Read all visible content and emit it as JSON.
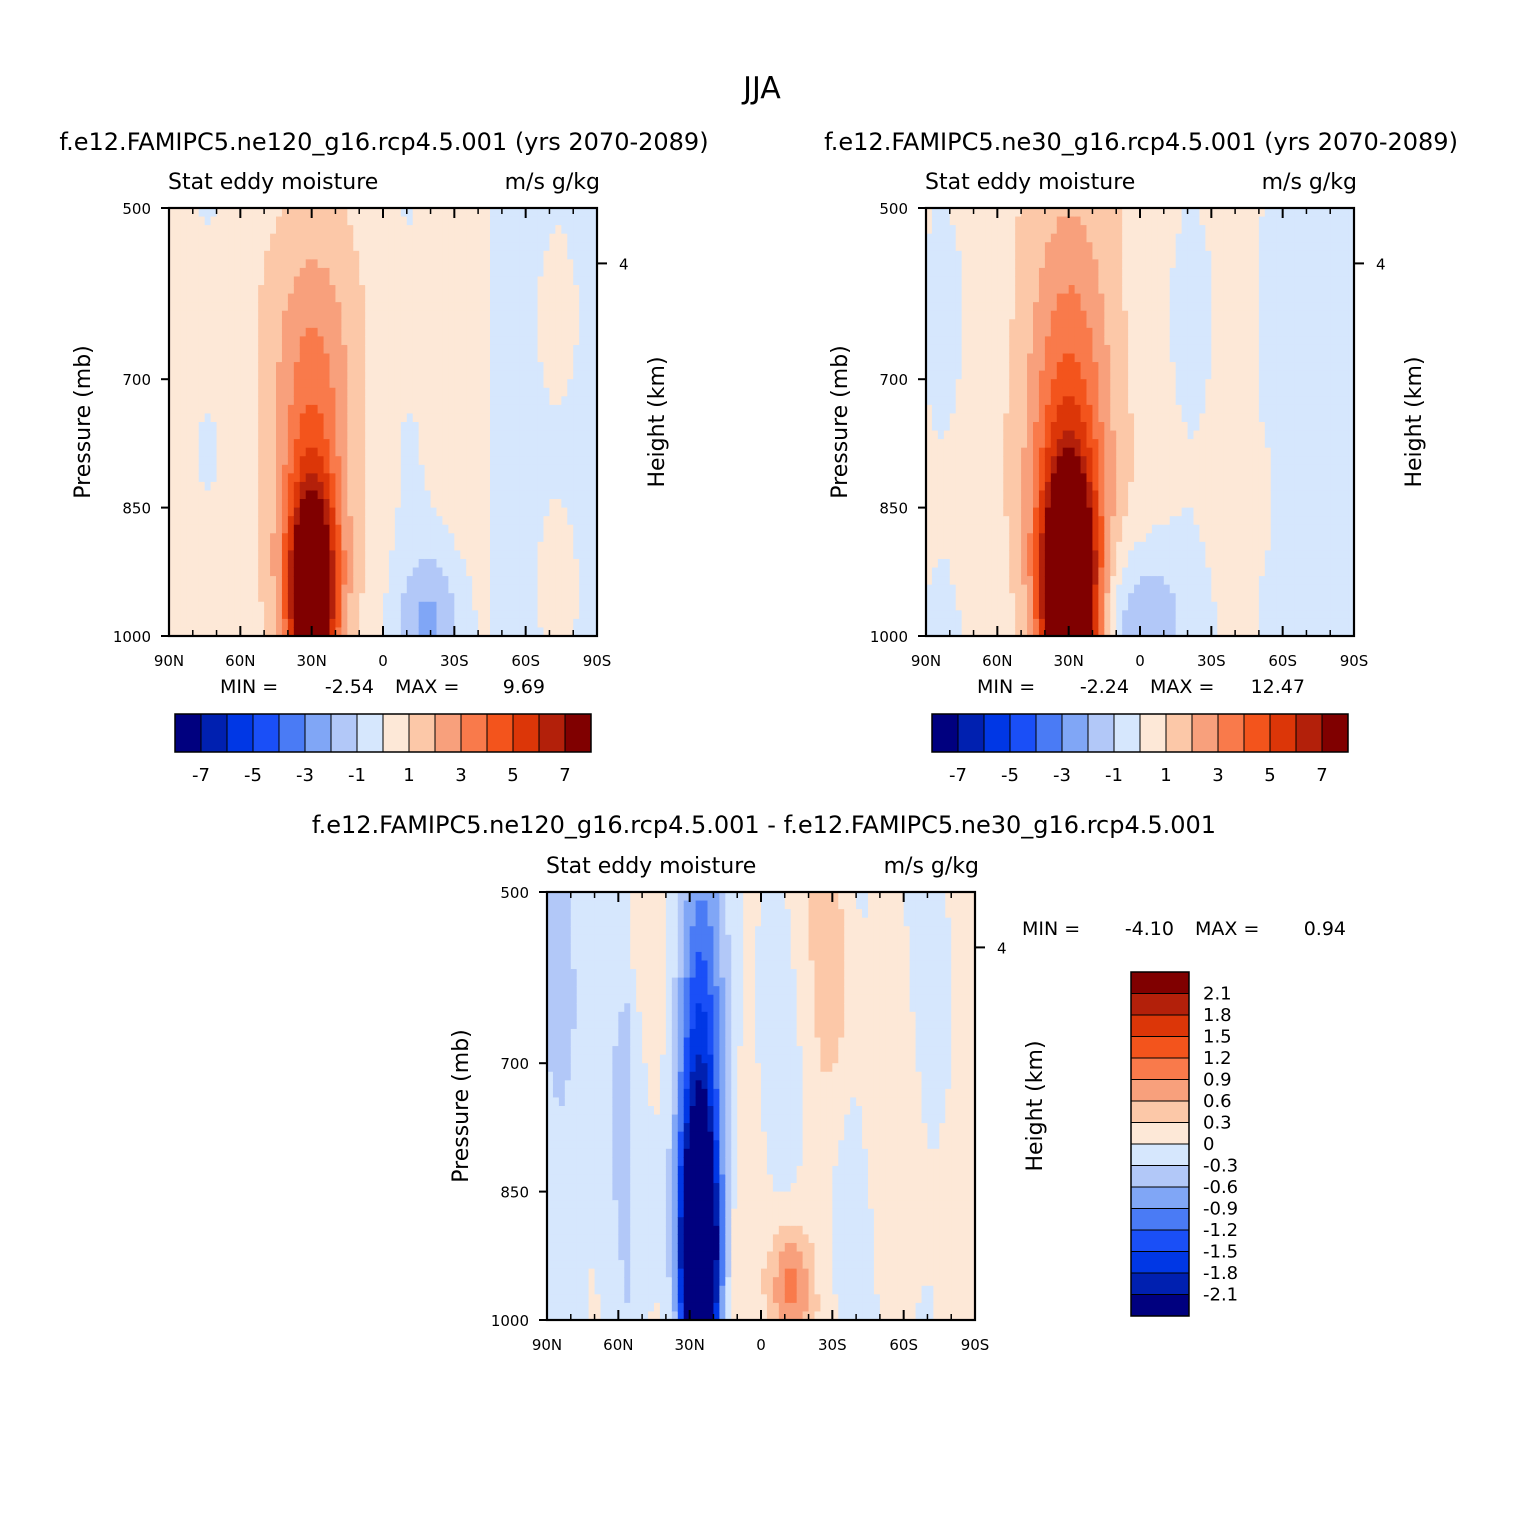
{
  "figure": {
    "title": "JJA"
  },
  "colors": {
    "lv": [
      "#00007f",
      "#0020b0",
      "#0037e5",
      "#1a4ff7",
      "#4a7bf5",
      "#80a6f6",
      "#b2c8f8",
      "#d6e7fd",
      "#fde8d7",
      "#fcc8a8",
      "#f8a07c",
      "#f97a4b",
      "#f3541c",
      "#dc3608",
      "#b3200a",
      "#800000"
    ],
    "bg_neg": "#d6e7fd",
    "bg_pos": "#fde8d7"
  },
  "chart_data": [
    {
      "id": "p1",
      "type": "heatmap",
      "title": "f.e12.FAMIPC5.ne120_g16.rcp4.5.001 (yrs 2070-2089)",
      "left_label": "Stat eddy moisture",
      "right_label": "m/s g/kg",
      "xlabel": "",
      "ylabel": "Pressure (mb)",
      "y2label": "Height (km)",
      "x_ticks": [
        "90N",
        "60N",
        "30N",
        "0",
        "30S",
        "60S",
        "90S"
      ],
      "x_range": [
        90,
        -90
      ],
      "y_ticks": [
        500,
        700,
        850,
        1000
      ],
      "y_range": [
        500,
        1000
      ],
      "y2_ticks": [
        4
      ],
      "min_label": "MIN =",
      "min_value": "-2.54",
      "max_label": "MAX =",
      "max_value": "9.69",
      "colorbar_labels": [
        "-7",
        "-5",
        "-3",
        "-1",
        "1",
        "3",
        "5",
        "7"
      ],
      "contour_levels": [
        -7,
        -6,
        -5,
        -4,
        -3,
        -2,
        -1,
        0,
        1,
        2,
        3,
        4,
        5,
        6,
        7
      ],
      "peak": {
        "lat": 30,
        "pressure": 950,
        "value": 9.69
      },
      "minimum": {
        "lat": -20,
        "pressure": 980,
        "value": -2.54
      }
    },
    {
      "id": "p2",
      "type": "heatmap",
      "title": "f.e12.FAMIPC5.ne30_g16.rcp4.5.001 (yrs 2070-2089)",
      "left_label": "Stat eddy moisture",
      "right_label": "m/s g/kg",
      "xlabel": "",
      "ylabel": "Pressure (mb)",
      "y2label": "Height (km)",
      "x_ticks": [
        "90N",
        "60N",
        "30N",
        "0",
        "30S",
        "60S",
        "90S"
      ],
      "x_range": [
        90,
        -90
      ],
      "y_ticks": [
        500,
        700,
        850,
        1000
      ],
      "y_range": [
        500,
        1000
      ],
      "y2_ticks": [
        4
      ],
      "min_label": "MIN =",
      "min_value": "-2.24",
      "max_label": "MAX =",
      "max_value": "12.47",
      "colorbar_labels": [
        "-7",
        "-5",
        "-3",
        "-1",
        "1",
        "3",
        "5",
        "7"
      ],
      "contour_levels": [
        -7,
        -6,
        -5,
        -4,
        -3,
        -2,
        -1,
        0,
        1,
        2,
        3,
        4,
        5,
        6,
        7
      ],
      "peak": {
        "lat": 30,
        "pressure": 950,
        "value": 12.47
      },
      "minimum": {
        "lat": 0,
        "pressure": 980,
        "value": -2.24
      }
    },
    {
      "id": "p3",
      "type": "heatmap",
      "title": "f.e12.FAMIPC5.ne120_g16.rcp4.5.001 - f.e12.FAMIPC5.ne30_g16.rcp4.5.001",
      "left_label": "Stat eddy moisture",
      "right_label": "m/s g/kg",
      "xlabel": "",
      "ylabel": "Pressure (mb)",
      "y2label": "Height (km)",
      "x_ticks": [
        "90N",
        "60N",
        "30N",
        "0",
        "30S",
        "60S",
        "90S"
      ],
      "x_range": [
        90,
        -90
      ],
      "y_ticks": [
        500,
        700,
        850,
        1000
      ],
      "y_range": [
        500,
        1000
      ],
      "y2_ticks": [
        4
      ],
      "min_label": "MIN =",
      "min_value": "-4.10",
      "max_label": "MAX =",
      "max_value": "0.94",
      "colorbar_labels": [
        "2.1",
        "1.8",
        "1.5",
        "1.2",
        "0.9",
        "0.6",
        "0.3",
        "0",
        "-0.3",
        "-0.6",
        "-0.9",
        "-1.2",
        "-1.5",
        "-1.8",
        "-2.1"
      ],
      "contour_levels": [
        -2.1,
        -1.8,
        -1.5,
        -1.2,
        -0.9,
        -0.6,
        -0.3,
        0,
        0.3,
        0.6,
        0.9,
        1.2,
        1.5,
        1.8,
        2.1
      ],
      "peak": {
        "lat": -12,
        "pressure": 960,
        "value": 0.94
      },
      "minimum": {
        "lat": 26,
        "pressure": 920,
        "value": -4.1
      }
    }
  ]
}
